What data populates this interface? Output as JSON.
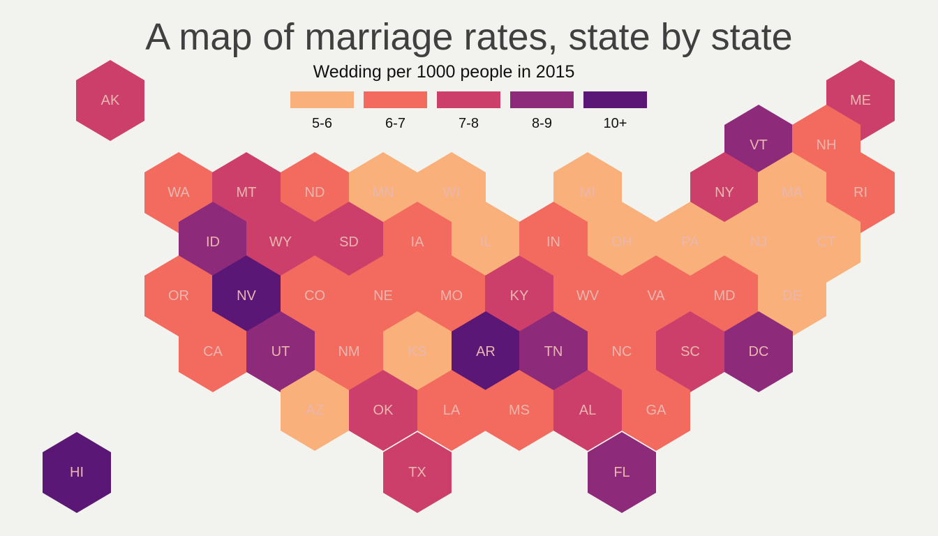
{
  "title": "A map of marriage rates, state by state",
  "legend": {
    "title": "Wedding per 1000 people in 2015",
    "bins": [
      {
        "label": "5-6",
        "color": "#f9b07a"
      },
      {
        "label": "6-7",
        "color": "#f26b5e"
      },
      {
        "label": "7-8",
        "color": "#cb3f6a"
      },
      {
        "label": "8-9",
        "color": "#8e2a7a"
      },
      {
        "label": "10+",
        "color": "#5a1775"
      }
    ]
  },
  "states": [
    {
      "code": "AK",
      "bin": "7-8"
    },
    {
      "code": "ME",
      "bin": "7-8"
    },
    {
      "code": "VT",
      "bin": "8-9"
    },
    {
      "code": "NH",
      "bin": "6-7"
    },
    {
      "code": "WA",
      "bin": "6-7"
    },
    {
      "code": "MT",
      "bin": "7-8"
    },
    {
      "code": "ND",
      "bin": "6-7"
    },
    {
      "code": "MN",
      "bin": "5-6"
    },
    {
      "code": "WI",
      "bin": "5-6"
    },
    {
      "code": "MI",
      "bin": "5-6"
    },
    {
      "code": "NY",
      "bin": "7-8"
    },
    {
      "code": "MA",
      "bin": "5-6"
    },
    {
      "code": "RI",
      "bin": "6-7"
    },
    {
      "code": "ID",
      "bin": "8-9"
    },
    {
      "code": "WY",
      "bin": "7-8"
    },
    {
      "code": "SD",
      "bin": "7-8"
    },
    {
      "code": "IA",
      "bin": "6-7"
    },
    {
      "code": "IL",
      "bin": "5-6"
    },
    {
      "code": "IN",
      "bin": "6-7"
    },
    {
      "code": "OH",
      "bin": "5-6"
    },
    {
      "code": "PA",
      "bin": "5-6"
    },
    {
      "code": "NJ",
      "bin": "5-6"
    },
    {
      "code": "CT",
      "bin": "5-6"
    },
    {
      "code": "OR",
      "bin": "6-7"
    },
    {
      "code": "NV",
      "bin": "10+"
    },
    {
      "code": "CO",
      "bin": "6-7"
    },
    {
      "code": "NE",
      "bin": "6-7"
    },
    {
      "code": "MO",
      "bin": "6-7"
    },
    {
      "code": "KY",
      "bin": "7-8"
    },
    {
      "code": "WV",
      "bin": "6-7"
    },
    {
      "code": "VA",
      "bin": "6-7"
    },
    {
      "code": "MD",
      "bin": "6-7"
    },
    {
      "code": "DE",
      "bin": "5-6"
    },
    {
      "code": "CA",
      "bin": "6-7"
    },
    {
      "code": "UT",
      "bin": "8-9"
    },
    {
      "code": "NM",
      "bin": "6-7"
    },
    {
      "code": "KS",
      "bin": "5-6"
    },
    {
      "code": "AR",
      "bin": "10+"
    },
    {
      "code": "TN",
      "bin": "8-9"
    },
    {
      "code": "NC",
      "bin": "6-7"
    },
    {
      "code": "SC",
      "bin": "7-8"
    },
    {
      "code": "DC",
      "bin": "8-9"
    },
    {
      "code": "AZ",
      "bin": "5-6"
    },
    {
      "code": "OK",
      "bin": "7-8"
    },
    {
      "code": "LA",
      "bin": "6-7"
    },
    {
      "code": "MS",
      "bin": "6-7"
    },
    {
      "code": "AL",
      "bin": "7-8"
    },
    {
      "code": "GA",
      "bin": "6-7"
    },
    {
      "code": "HI",
      "bin": "10+"
    },
    {
      "code": "TX",
      "bin": "7-8"
    },
    {
      "code": "FL",
      "bin": "8-9"
    }
  ]
}
